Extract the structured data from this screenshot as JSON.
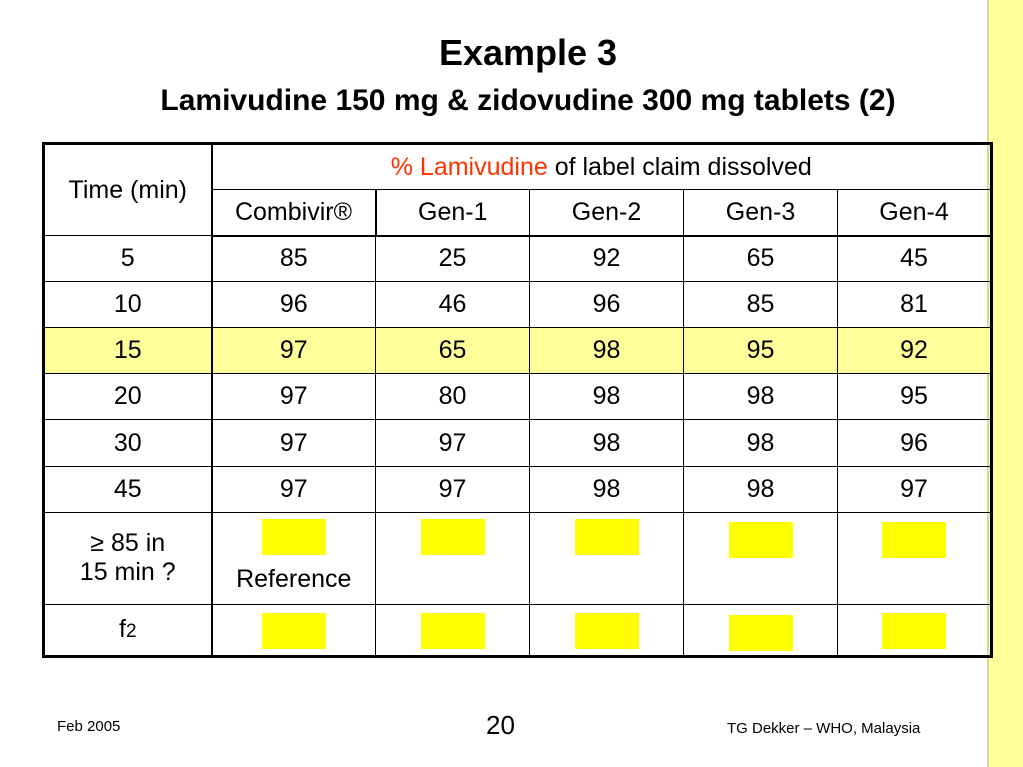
{
  "title": "Example 3",
  "subtitle": "Lamivudine 150 mg & zidovudine 300 mg tablets (2)",
  "table": {
    "time_header": "Time (min)",
    "group_header_red": "% Lamivudine",
    "group_header_rest": " of label claim dissolved",
    "columns": [
      "Combivir®",
      "Gen-1",
      "Gen-2",
      "Gen-3",
      "Gen-4"
    ],
    "rows": [
      {
        "time": "5",
        "values": [
          "85",
          "25",
          "92",
          "65",
          "45"
        ]
      },
      {
        "time": "10",
        "values": [
          "96",
          "46",
          "96",
          "85",
          "81"
        ]
      },
      {
        "time": "15",
        "values": [
          "97",
          "65",
          "98",
          "95",
          "92"
        ],
        "highlighted": true
      },
      {
        "time": "20",
        "values": [
          "97",
          "80",
          "98",
          "98",
          "95"
        ]
      },
      {
        "time": "30",
        "values": [
          "97",
          "97",
          "98",
          "98",
          "96"
        ]
      },
      {
        "time": "45",
        "values": [
          "97",
          "97",
          "98",
          "98",
          "97"
        ]
      }
    ],
    "criterion_label_line1": "≥ 85 in",
    "criterion_label_line2": "15 min ?",
    "reference_label": "Reference",
    "f2_label": "f",
    "f2_sub": "2"
  },
  "colors": {
    "highlight_row": "#ffff99",
    "placeholder_box": "#ffff00",
    "header_accent": "#ff3300",
    "side_bar": "#ffff99"
  },
  "footer": {
    "date": "Feb 2005",
    "page_number": "20",
    "credit": "TG Dekker – WHO, Malaysia"
  }
}
